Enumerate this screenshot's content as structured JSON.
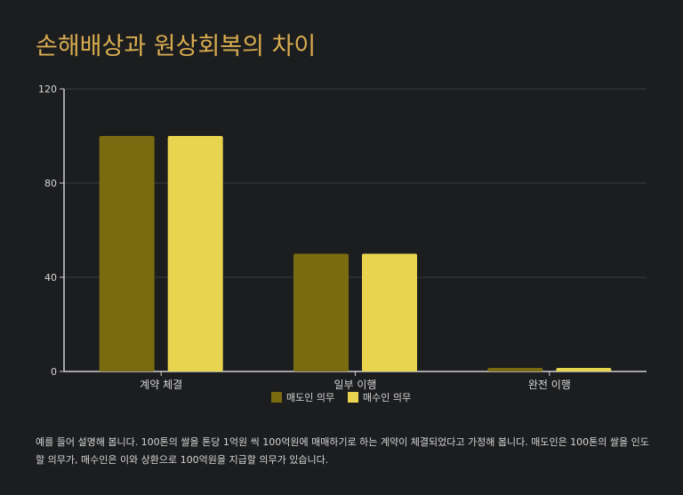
{
  "title": "손해배상과 원상회복의 차이",
  "note": "예를 들어 설명해 봅니다. 100톤의 쌀을 톤당 1억원 씩 100억원에 매매하기로 하는 계약이 체결되었다고 가정해 봅니다. 매도인은 100톤의 쌀을 인도할 의무가, 매수인은 이와 상환으로 100억원을 지급할 의무가 있습니다.",
  "colors": {
    "seller": "#7a6b10",
    "buyer": "#e8d44e",
    "title": "#d9ad4f",
    "axis": "#d0d0d0",
    "grid": "#3a3b3e",
    "text": "#d6d6d6"
  },
  "chart_data": {
    "type": "bar",
    "categories": [
      "계약 체결",
      "일부 이행",
      "완전 이행"
    ],
    "series": [
      {
        "name": "매도인 의무",
        "values": [
          100,
          50,
          1.5
        ]
      },
      {
        "name": "매수인 의무",
        "values": [
          100,
          50,
          1.5
        ]
      }
    ],
    "yticks": [
      0,
      40,
      80,
      120
    ],
    "ylim": [
      0,
      120
    ],
    "grid": true,
    "legend": "bottom-center"
  }
}
